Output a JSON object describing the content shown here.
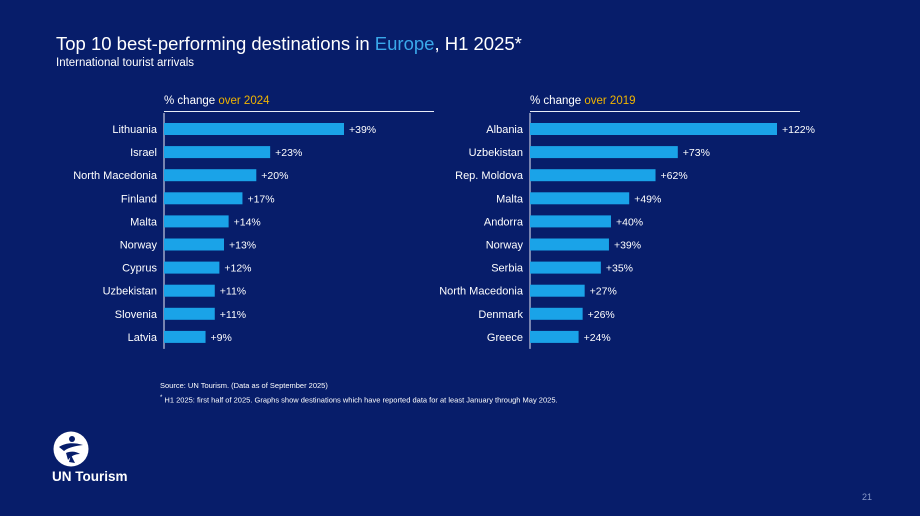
{
  "title": {
    "prefix": "Top 10 best-performing destinations in ",
    "highlight": "Europe",
    "suffix": ", H1 2025*"
  },
  "subtitle": "International tourist arrivals",
  "colors": {
    "background": "#071d6a",
    "bar": "#1aa3e8",
    "title_highlight": "#3aa8ea",
    "header_highlight": "#f0b400"
  },
  "chart_data": [
    {
      "type": "bar",
      "orientation": "horizontal",
      "header_prefix": "% change ",
      "header_highlight": "over 2024",
      "categories": [
        "Lithuania",
        "Israel",
        "North Macedonia",
        "Finland",
        "Malta",
        "Norway",
        "Cyprus",
        "Uzbekistan",
        "Slovenia",
        "Latvia"
      ],
      "values": [
        39,
        23,
        20,
        17,
        14,
        13,
        12,
        11,
        11,
        9
      ],
      "labels": [
        "+39%",
        "+23%",
        "+20%",
        "+17%",
        "+14%",
        "+13%",
        "+12%",
        "+11%",
        "+11%",
        "+9%"
      ],
      "xlim": [
        0,
        39
      ]
    },
    {
      "type": "bar",
      "orientation": "horizontal",
      "header_prefix": "% change ",
      "header_highlight": "over 2019",
      "categories": [
        "Albania",
        "Uzbekistan",
        "Rep. Moldova",
        "Malta",
        "Andorra",
        "Norway",
        "Serbia",
        "North Macedonia",
        "Denmark",
        "Greece"
      ],
      "values": [
        122,
        73,
        62,
        49,
        40,
        39,
        35,
        27,
        26,
        24
      ],
      "labels": [
        "+122%",
        "+73%",
        "+62%",
        "+49%",
        "+40%",
        "+39%",
        "+35%",
        "+27%",
        "+26%",
        "+24%"
      ],
      "xlim": [
        0,
        122
      ]
    }
  ],
  "source": "Source: UN Tourism. (Data as of September 2025)",
  "footnote": {
    "marker": "*",
    "text": " H1 2025: first half of 2025. Graphs show destinations which have reported data for at least January through May 2025."
  },
  "logo_text": "UN Tourism",
  "page_number": "21"
}
